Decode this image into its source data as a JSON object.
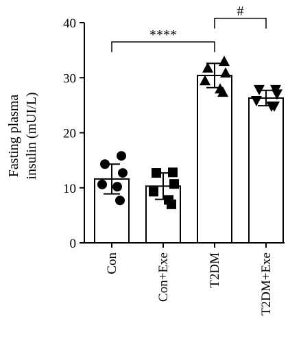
{
  "chart_data": {
    "type": "bar",
    "ylabel_lines": [
      "Fasting plasma",
      "insulin (mUI/L)"
    ],
    "categories": [
      "Con",
      "Con+Exe",
      "T2DM",
      "T2DM+Exe"
    ],
    "values": [
      11.6,
      10.3,
      30.4,
      26.3
    ],
    "errors": [
      2.7,
      2.4,
      2.2,
      1.4
    ],
    "ylim": [
      0,
      40
    ],
    "yticks": [
      0,
      10,
      20,
      30,
      40
    ],
    "grid": false,
    "markers": [
      "circle",
      "square",
      "triangle-up",
      "triangle-down"
    ],
    "points": [
      [
        15.8,
        14.3,
        12.7,
        10.6,
        10.2,
        7.7
      ],
      [
        12.8,
        12.7,
        10.7,
        9.3,
        7.8,
        7.0
      ],
      [
        33.0,
        31.8,
        30.9,
        29.5,
        28.0,
        27.4
      ],
      [
        27.8,
        27.8,
        27.0,
        25.8,
        24.8,
        24.8
      ]
    ],
    "significance": [
      {
        "from": 0,
        "to": 2,
        "label": "****",
        "y": 36.5
      },
      {
        "from": 2,
        "to": 3,
        "label": "#",
        "y": 40.8
      }
    ]
  }
}
